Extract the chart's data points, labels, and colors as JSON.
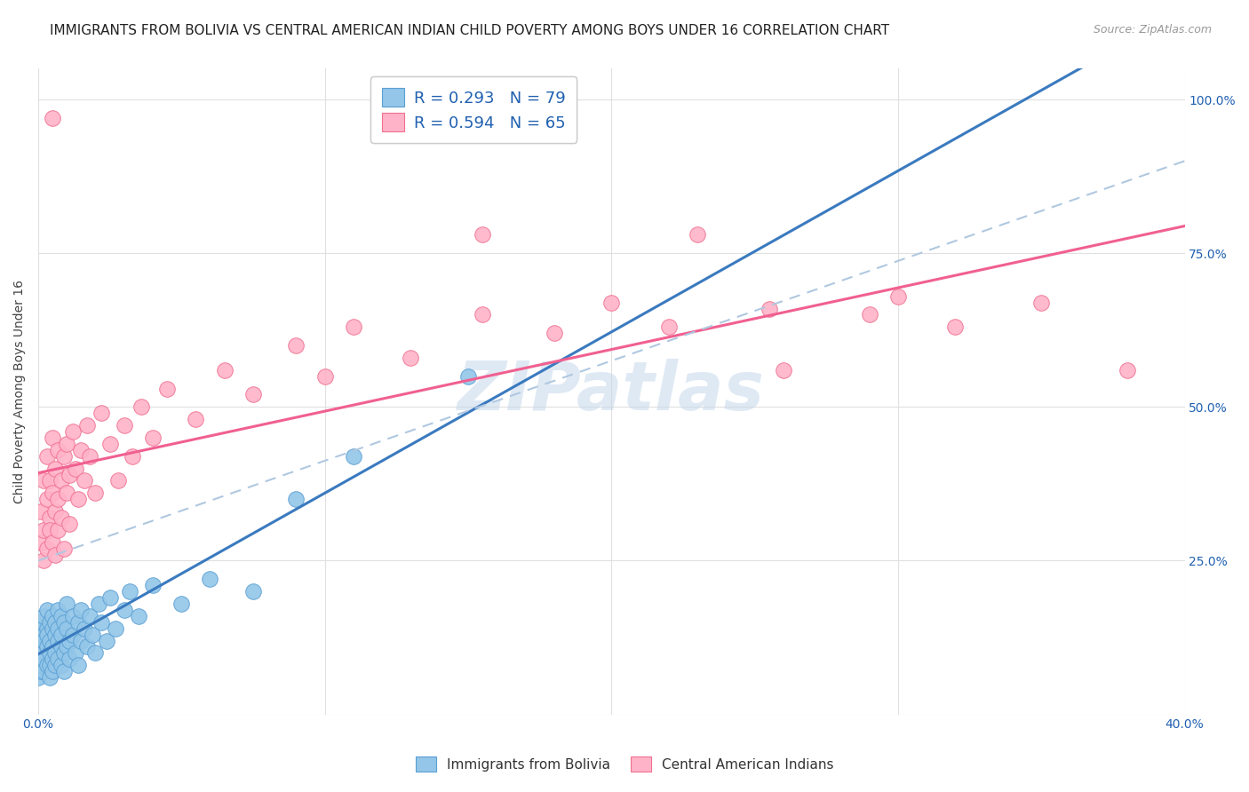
{
  "title": "IMMIGRANTS FROM BOLIVIA VS CENTRAL AMERICAN INDIAN CHILD POVERTY AMONG BOYS UNDER 16 CORRELATION CHART",
  "source": "Source: ZipAtlas.com",
  "ylabel": "Child Poverty Among Boys Under 16",
  "watermark": "ZIPatlas",
  "xlim": [
    0.0,
    0.4
  ],
  "ylim": [
    0.0,
    1.05
  ],
  "xticks": [
    0.0,
    0.1,
    0.2,
    0.3,
    0.4
  ],
  "xticklabels": [
    "0.0%",
    "",
    "",
    "",
    "40.0%"
  ],
  "yticks": [
    0.0,
    0.25,
    0.5,
    0.75,
    1.0
  ],
  "yticklabels": [
    "",
    "25.0%",
    "50.0%",
    "75.0%",
    "100.0%"
  ],
  "bolivia_R": 0.293,
  "bolivia_N": 79,
  "central_R": 0.594,
  "central_N": 65,
  "bolivia_color": "#93c6e8",
  "bolivia_edge": "#5a9fd4",
  "central_color": "#ffb3c8",
  "central_edge": "#f07090",
  "bolivia_line_color": "#3a7abf",
  "central_line_color": "#f06090",
  "dash_line_color": "#b0c8e0",
  "legend_color": "#2060b0",
  "background_color": "#ffffff",
  "grid_color": "#e0e0e0",
  "title_fontsize": 11,
  "axis_label_fontsize": 10,
  "tick_fontsize": 10,
  "legend_fontsize": 13,
  "bolivia_points": [
    [
      0.0,
      0.13
    ],
    [
      0.0,
      0.1
    ],
    [
      0.0,
      0.08
    ],
    [
      0.0,
      0.06
    ],
    [
      0.0,
      0.15
    ],
    [
      0.001,
      0.12
    ],
    [
      0.001,
      0.09
    ],
    [
      0.001,
      0.07
    ],
    [
      0.001,
      0.14
    ],
    [
      0.001,
      0.11
    ],
    [
      0.001,
      0.08
    ],
    [
      0.002,
      0.13
    ],
    [
      0.002,
      0.1
    ],
    [
      0.002,
      0.16
    ],
    [
      0.002,
      0.07
    ],
    [
      0.002,
      0.12
    ],
    [
      0.002,
      0.09
    ],
    [
      0.003,
      0.14
    ],
    [
      0.003,
      0.11
    ],
    [
      0.003,
      0.08
    ],
    [
      0.003,
      0.17
    ],
    [
      0.003,
      0.13
    ],
    [
      0.004,
      0.1
    ],
    [
      0.004,
      0.15
    ],
    [
      0.004,
      0.08
    ],
    [
      0.004,
      0.12
    ],
    [
      0.004,
      0.06
    ],
    [
      0.005,
      0.14
    ],
    [
      0.005,
      0.11
    ],
    [
      0.005,
      0.09
    ],
    [
      0.005,
      0.16
    ],
    [
      0.005,
      0.07
    ],
    [
      0.006,
      0.13
    ],
    [
      0.006,
      0.1
    ],
    [
      0.006,
      0.15
    ],
    [
      0.006,
      0.08
    ],
    [
      0.007,
      0.12
    ],
    [
      0.007,
      0.17
    ],
    [
      0.007,
      0.09
    ],
    [
      0.007,
      0.14
    ],
    [
      0.008,
      0.11
    ],
    [
      0.008,
      0.16
    ],
    [
      0.008,
      0.08
    ],
    [
      0.008,
      0.13
    ],
    [
      0.009,
      0.1
    ],
    [
      0.009,
      0.15
    ],
    [
      0.009,
      0.07
    ],
    [
      0.01,
      0.14
    ],
    [
      0.01,
      0.11
    ],
    [
      0.01,
      0.18
    ],
    [
      0.011,
      0.12
    ],
    [
      0.011,
      0.09
    ],
    [
      0.012,
      0.16
    ],
    [
      0.012,
      0.13
    ],
    [
      0.013,
      0.1
    ],
    [
      0.014,
      0.15
    ],
    [
      0.014,
      0.08
    ],
    [
      0.015,
      0.12
    ],
    [
      0.015,
      0.17
    ],
    [
      0.016,
      0.14
    ],
    [
      0.017,
      0.11
    ],
    [
      0.018,
      0.16
    ],
    [
      0.019,
      0.13
    ],
    [
      0.02,
      0.1
    ],
    [
      0.021,
      0.18
    ],
    [
      0.022,
      0.15
    ],
    [
      0.024,
      0.12
    ],
    [
      0.025,
      0.19
    ],
    [
      0.027,
      0.14
    ],
    [
      0.03,
      0.17
    ],
    [
      0.032,
      0.2
    ],
    [
      0.035,
      0.16
    ],
    [
      0.04,
      0.21
    ],
    [
      0.05,
      0.18
    ],
    [
      0.06,
      0.22
    ],
    [
      0.075,
      0.2
    ],
    [
      0.09,
      0.35
    ],
    [
      0.11,
      0.42
    ],
    [
      0.15,
      0.55
    ]
  ],
  "central_points": [
    [
      0.001,
      0.28
    ],
    [
      0.001,
      0.33
    ],
    [
      0.002,
      0.3
    ],
    [
      0.002,
      0.38
    ],
    [
      0.002,
      0.25
    ],
    [
      0.003,
      0.35
    ],
    [
      0.003,
      0.27
    ],
    [
      0.003,
      0.42
    ],
    [
      0.004,
      0.32
    ],
    [
      0.004,
      0.38
    ],
    [
      0.004,
      0.3
    ],
    [
      0.005,
      0.45
    ],
    [
      0.005,
      0.28
    ],
    [
      0.005,
      0.36
    ],
    [
      0.005,
      0.97
    ],
    [
      0.006,
      0.33
    ],
    [
      0.006,
      0.4
    ],
    [
      0.006,
      0.26
    ],
    [
      0.007,
      0.35
    ],
    [
      0.007,
      0.43
    ],
    [
      0.007,
      0.3
    ],
    [
      0.008,
      0.38
    ],
    [
      0.008,
      0.32
    ],
    [
      0.009,
      0.42
    ],
    [
      0.009,
      0.27
    ],
    [
      0.01,
      0.36
    ],
    [
      0.01,
      0.44
    ],
    [
      0.011,
      0.39
    ],
    [
      0.011,
      0.31
    ],
    [
      0.012,
      0.46
    ],
    [
      0.013,
      0.4
    ],
    [
      0.014,
      0.35
    ],
    [
      0.015,
      0.43
    ],
    [
      0.016,
      0.38
    ],
    [
      0.017,
      0.47
    ],
    [
      0.018,
      0.42
    ],
    [
      0.02,
      0.36
    ],
    [
      0.022,
      0.49
    ],
    [
      0.025,
      0.44
    ],
    [
      0.028,
      0.38
    ],
    [
      0.03,
      0.47
    ],
    [
      0.033,
      0.42
    ],
    [
      0.036,
      0.5
    ],
    [
      0.04,
      0.45
    ],
    [
      0.045,
      0.53
    ],
    [
      0.055,
      0.48
    ],
    [
      0.065,
      0.56
    ],
    [
      0.075,
      0.52
    ],
    [
      0.09,
      0.6
    ],
    [
      0.1,
      0.55
    ],
    [
      0.11,
      0.63
    ],
    [
      0.13,
      0.58
    ],
    [
      0.155,
      0.65
    ],
    [
      0.18,
      0.62
    ],
    [
      0.2,
      0.67
    ],
    [
      0.22,
      0.63
    ],
    [
      0.255,
      0.66
    ],
    [
      0.29,
      0.65
    ],
    [
      0.32,
      0.63
    ],
    [
      0.35,
      0.67
    ],
    [
      0.155,
      0.78
    ],
    [
      0.23,
      0.78
    ],
    [
      0.3,
      0.68
    ],
    [
      0.26,
      0.56
    ],
    [
      0.38,
      0.56
    ]
  ]
}
